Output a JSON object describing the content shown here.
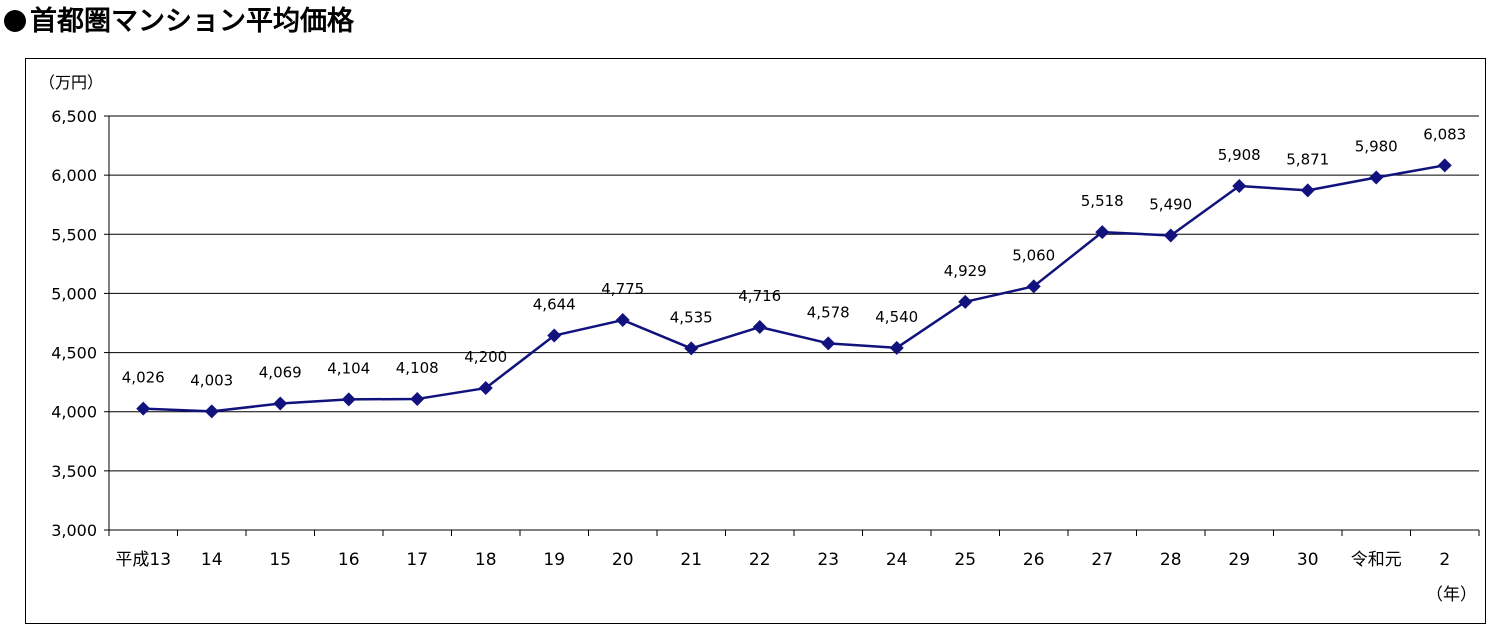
{
  "page": {
    "title": "首都圏マンション平均価格"
  },
  "colors": {
    "series": "#12127e",
    "grid": "#000000"
  },
  "chart_data": {
    "type": "line",
    "title": "",
    "ylabel": "（万円）",
    "xlabel": "（年）",
    "categories": [
      "平成13",
      "14",
      "15",
      "16",
      "17",
      "18",
      "19",
      "20",
      "21",
      "22",
      "23",
      "24",
      "25",
      "26",
      "27",
      "28",
      "29",
      "30",
      "令和元",
      "2"
    ],
    "series": [
      {
        "values": [
          4026,
          4003,
          4069,
          4104,
          4108,
          4200,
          4644,
          4775,
          4535,
          4716,
          4578,
          4540,
          4929,
          5060,
          5518,
          5490,
          5908,
          5871,
          5980,
          6083
        ],
        "data_labels": [
          "4,026",
          "4,003",
          "4,069",
          "4,104",
          "4,108",
          "4,200",
          "4,644",
          "4,775",
          "4,535",
          "4,716",
          "4,578",
          "4,540",
          "4,929",
          "5,060",
          "5,518",
          "5,490",
          "5,908",
          "5,871",
          "5,980",
          "6,083"
        ],
        "marker": "diamond"
      }
    ],
    "ylim": [
      3000,
      6500
    ],
    "yticks": [
      3000,
      3500,
      4000,
      4500,
      5000,
      5500,
      6000,
      6500
    ],
    "ytick_labels": [
      "3,000",
      "3,500",
      "4,000",
      "4,500",
      "5,000",
      "5,500",
      "6,000",
      "6,500"
    ],
    "grid": true,
    "legend": "none"
  }
}
